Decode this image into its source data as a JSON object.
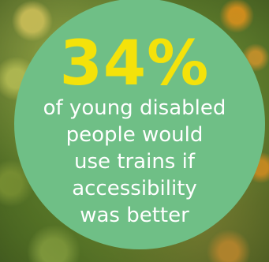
{
  "stat": {
    "value": "34%",
    "lines": [
      "of young disabled",
      "people would",
      "use trains if",
      "accessibility",
      "was better"
    ]
  },
  "colors": {
    "badge": "#6fbf86",
    "stat_value": "#f4e20a",
    "caption": "#ffffff"
  }
}
